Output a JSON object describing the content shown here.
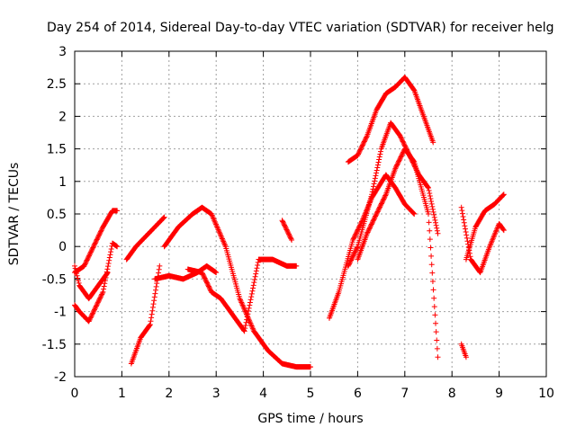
{
  "chart_data": {
    "type": "scatter",
    "title": "Day 254 of 2014, Sidereal Day-to-day VTEC variation (SDTVAR) for receiver helg",
    "xlabel": "GPS time / hours",
    "ylabel": "SDTVAR / TECUs",
    "xlim": [
      0,
      10
    ],
    "ylim": [
      -2,
      3
    ],
    "xticks": [
      0,
      1,
      2,
      3,
      4,
      5,
      6,
      7,
      8,
      9,
      10
    ],
    "yticks": [
      -2,
      -1.5,
      -1,
      -0.5,
      0,
      0.5,
      1,
      1.5,
      2,
      2.5,
      3
    ],
    "xtick_labels": [
      "0",
      "1",
      "2",
      "3",
      "4",
      "5",
      "6",
      "7",
      "8",
      "9",
      "10"
    ],
    "ytick_labels": [
      "-2",
      "-1.5",
      "-1",
      "-0.5",
      "0",
      "0.5",
      "1",
      "1.5",
      "2",
      "2.5",
      "3"
    ],
    "grid": true,
    "marker": "+",
    "color": "#ff0000",
    "series": [
      {
        "name": "s1",
        "x": [
          0.0,
          0.2,
          0.4,
          0.6,
          0.8,
          0.9
        ],
        "y": [
          -0.4,
          -0.3,
          0.0,
          0.3,
          0.55,
          0.55
        ]
      },
      {
        "name": "s2",
        "x": [
          0.0,
          0.1,
          0.3,
          0.5,
          0.7
        ],
        "y": [
          -0.3,
          -0.6,
          -0.8,
          -0.6,
          -0.4
        ]
      },
      {
        "name": "s3",
        "x": [
          0.0,
          0.1,
          0.3,
          0.6,
          0.8,
          0.9
        ],
        "y": [
          -0.9,
          -1.0,
          -1.15,
          -0.7,
          0.05,
          0.0
        ]
      },
      {
        "name": "s4",
        "x": [
          1.1,
          1.3,
          1.5,
          1.7,
          1.9
        ],
        "y": [
          -0.2,
          0.0,
          0.15,
          0.3,
          0.45
        ]
      },
      {
        "name": "s5",
        "x": [
          1.9,
          2.2,
          2.5,
          2.7,
          2.9,
          3.2,
          3.5,
          3.8,
          4.1,
          4.4,
          4.7,
          5.0
        ],
        "y": [
          0.0,
          0.3,
          0.5,
          0.6,
          0.5,
          0.0,
          -0.8,
          -1.3,
          -1.6,
          -1.8,
          -1.85,
          -1.85
        ]
      },
      {
        "name": "s6",
        "x": [
          1.7,
          2.0,
          2.3,
          2.6,
          2.8,
          3.0
        ],
        "y": [
          -0.5,
          -0.45,
          -0.5,
          -0.4,
          -0.3,
          -0.4
        ]
      },
      {
        "name": "s7",
        "x": [
          1.2,
          1.4,
          1.6,
          1.8
        ],
        "y": [
          -1.8,
          -1.4,
          -1.2,
          -0.3
        ]
      },
      {
        "name": "s8",
        "x": [
          2.4,
          2.7,
          2.9,
          3.1,
          3.4,
          3.6,
          3.9,
          4.2,
          4.5,
          4.7
        ],
        "y": [
          -0.35,
          -0.4,
          -0.7,
          -0.8,
          -1.1,
          -1.3,
          -0.2,
          -0.2,
          -0.3,
          -0.3
        ]
      },
      {
        "name": "s9",
        "x": [
          4.4,
          4.6
        ],
        "y": [
          0.4,
          0.1
        ]
      },
      {
        "name": "s10",
        "x": [
          5.8,
          6.0,
          6.2,
          6.4,
          6.6,
          6.8,
          7.0,
          7.2,
          7.4,
          7.6
        ],
        "y": [
          1.3,
          1.4,
          1.7,
          2.1,
          2.35,
          2.45,
          2.6,
          2.4,
          2.0,
          1.6
        ]
      },
      {
        "name": "s11",
        "x": [
          5.8,
          6.0,
          6.3,
          6.5,
          6.7,
          6.9,
          7.1,
          7.3,
          7.5,
          7.7
        ],
        "y": [
          -0.3,
          0.0,
          0.8,
          1.5,
          1.9,
          1.7,
          1.4,
          1.1,
          0.9,
          0.2
        ]
      },
      {
        "name": "s12",
        "x": [
          5.4,
          5.6,
          5.9,
          6.1,
          6.3,
          6.6,
          6.8,
          7.0,
          7.2
        ],
        "y": [
          -1.1,
          -0.7,
          0.1,
          0.4,
          0.75,
          1.1,
          0.9,
          0.65,
          0.5
        ]
      },
      {
        "name": "s13",
        "x": [
          6.0,
          6.2,
          6.4,
          6.6,
          6.8,
          7.0,
          7.2,
          7.5,
          7.7
        ],
        "y": [
          -0.2,
          0.2,
          0.5,
          0.8,
          1.2,
          1.5,
          1.3,
          0.5,
          -1.7
        ]
      },
      {
        "name": "s14",
        "x": [
          8.3,
          8.5,
          8.7,
          8.9,
          9.1
        ],
        "y": [
          -0.2,
          0.3,
          0.55,
          0.65,
          0.8
        ]
      },
      {
        "name": "s15",
        "x": [
          8.2,
          8.4,
          8.6,
          8.8,
          9.0,
          9.1
        ],
        "y": [
          0.6,
          -0.2,
          -0.4,
          0.0,
          0.35,
          0.25
        ]
      },
      {
        "name": "s16",
        "x": [
          8.2,
          8.3
        ],
        "y": [
          -1.5,
          -1.7
        ]
      }
    ]
  }
}
